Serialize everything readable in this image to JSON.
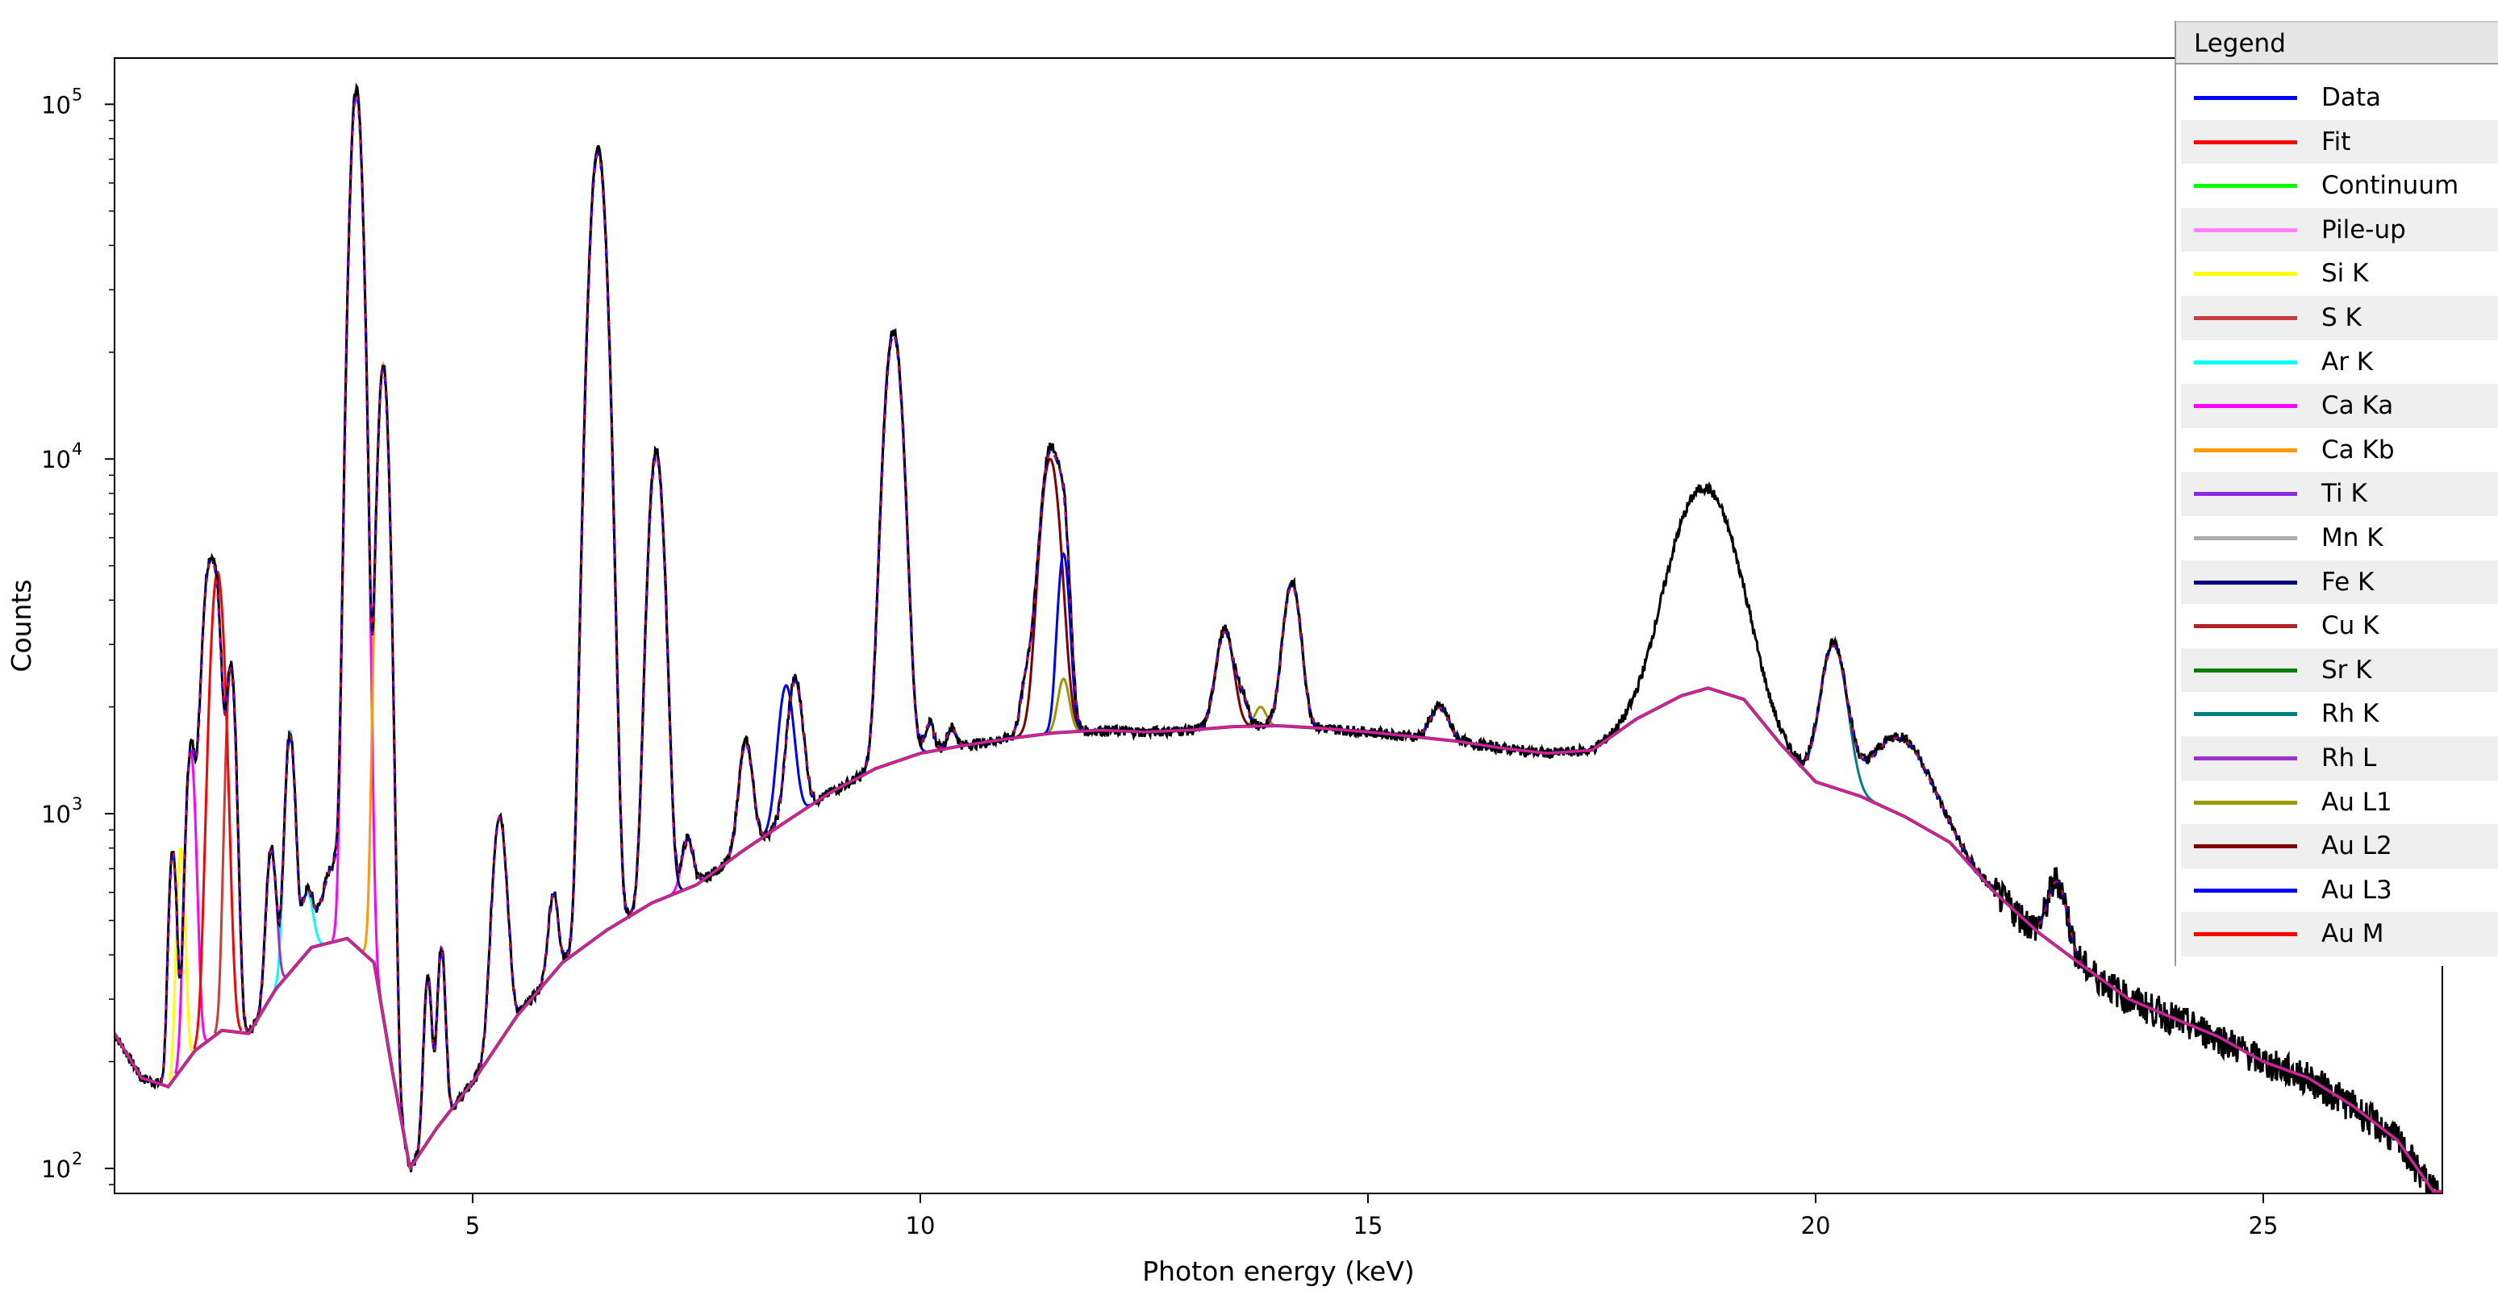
{
  "chart_data": {
    "type": "line",
    "title": "",
    "xlabel": "Photon energy (keV)",
    "ylabel": "Counts",
    "xlim": [
      1.0,
      27.0
    ],
    "ylim": [
      85,
      135000
    ],
    "yscale": "log",
    "x_ticks": [
      5,
      10,
      15,
      20,
      25
    ],
    "x_tick_labels": [
      "5",
      "10",
      "15",
      "20",
      "25"
    ],
    "y_ticks": [
      100,
      1000,
      10000,
      100000
    ],
    "y_tick_labels": [
      "10",
      "10",
      "10",
      "10"
    ],
    "y_tick_exponents": [
      "2",
      "3",
      "4",
      "5"
    ],
    "grid": false,
    "legend_placement": "right",
    "continuum_points": [
      [
        1.0,
        240
      ],
      [
        1.3,
        180
      ],
      [
        1.6,
        170
      ],
      [
        1.9,
        215
      ],
      [
        2.2,
        245
      ],
      [
        2.5,
        240
      ],
      [
        2.8,
        320
      ],
      [
        3.2,
        420
      ],
      [
        3.6,
        445
      ],
      [
        3.9,
        380
      ],
      [
        4.1,
        190
      ],
      [
        4.3,
        100
      ],
      [
        4.6,
        130
      ],
      [
        5.0,
        175
      ],
      [
        5.5,
        270
      ],
      [
        6.0,
        380
      ],
      [
        6.5,
        470
      ],
      [
        7.0,
        560
      ],
      [
        7.5,
        630
      ],
      [
        8.0,
        780
      ],
      [
        8.5,
        950
      ],
      [
        9.0,
        1150
      ],
      [
        9.5,
        1340
      ],
      [
        10.0,
        1480
      ],
      [
        10.5,
        1560
      ],
      [
        11.0,
        1630
      ],
      [
        11.5,
        1690
      ],
      [
        12.0,
        1720
      ],
      [
        12.5,
        1700
      ],
      [
        13.0,
        1720
      ],
      [
        13.5,
        1760
      ],
      [
        14.0,
        1770
      ],
      [
        14.5,
        1740
      ],
      [
        15.0,
        1700
      ],
      [
        15.5,
        1650
      ],
      [
        16.0,
        1600
      ],
      [
        16.5,
        1530
      ],
      [
        17.0,
        1480
      ],
      [
        17.5,
        1510
      ],
      [
        18.0,
        1850
      ],
      [
        18.5,
        2150
      ],
      [
        18.8,
        2260
      ],
      [
        19.2,
        2100
      ],
      [
        19.6,
        1580
      ],
      [
        20.0,
        1230
      ],
      [
        20.5,
        1120
      ],
      [
        21.0,
        980
      ],
      [
        21.5,
        830
      ],
      [
        22.0,
        600
      ],
      [
        22.5,
        460
      ],
      [
        23.0,
        370
      ],
      [
        23.5,
        300
      ],
      [
        24.0,
        265
      ],
      [
        24.5,
        235
      ],
      [
        25.0,
        200
      ],
      [
        25.5,
        180
      ],
      [
        26.0,
        150
      ],
      [
        26.5,
        120
      ],
      [
        26.9,
        86
      ]
    ],
    "data_peaks": [
      [
        1.65,
        800,
        0.04
      ],
      [
        1.85,
        1500,
        0.05
      ],
      [
        2.05,
        4800,
        0.07
      ],
      [
        2.15,
        2700,
        0.05
      ],
      [
        2.3,
        2600,
        0.05
      ],
      [
        2.75,
        800,
        0.05
      ],
      [
        2.96,
        1700,
        0.05
      ],
      [
        3.15,
        600,
        0.06
      ],
      [
        3.45,
        720,
        0.12
      ],
      [
        3.7,
        110000,
        0.06
      ],
      [
        4.0,
        18500,
        0.055
      ],
      [
        4.5,
        350,
        0.04
      ],
      [
        4.65,
        420,
        0.04
      ],
      [
        5.3,
        1000,
        0.07
      ],
      [
        5.9,
        600,
        0.05
      ],
      [
        6.4,
        75000,
        0.08
      ],
      [
        7.05,
        10500,
        0.075
      ],
      [
        7.4,
        850,
        0.06
      ],
      [
        8.05,
        1600,
        0.07
      ],
      [
        8.6,
        2400,
        0.08
      ],
      [
        9.7,
        23000,
        0.09
      ],
      [
        10.1,
        1800,
        0.05
      ],
      [
        10.35,
        1750,
        0.05
      ],
      [
        11.2,
        2400,
        0.07
      ],
      [
        11.45,
        10600,
        0.1
      ],
      [
        11.6,
        5400,
        0.06
      ],
      [
        13.4,
        3300,
        0.09
      ],
      [
        13.6,
        2100,
        0.06
      ],
      [
        14.15,
        4500,
        0.09
      ],
      [
        15.8,
        2000,
        0.1
      ],
      [
        18.75,
        8300,
        0.32
      ],
      [
        20.2,
        3000,
        0.13
      ],
      [
        20.95,
        1650,
        0.3
      ],
      [
        22.7,
        650,
        0.1
      ],
      [
        23.05,
        320,
        0.07
      ]
    ],
    "series": [
      {
        "name": "Data",
        "color": "#0000ff"
      },
      {
        "name": "Fit",
        "color": "#ff0000"
      },
      {
        "name": "Continuum",
        "color": "#00ff00"
      },
      {
        "name": "Pile-up",
        "color": "#ff80ff"
      },
      {
        "name": "Si K",
        "color": "#ffff00"
      },
      {
        "name": "S K",
        "color": "#cd3c3c"
      },
      {
        "name": "Ar K",
        "color": "#00ffff"
      },
      {
        "name": "Ca Ka",
        "color": "#ff00ff"
      },
      {
        "name": "Ca Kb",
        "color": "#ff9900"
      },
      {
        "name": "Ti K",
        "color": "#8a2be2"
      },
      {
        "name": "Mn K",
        "color": "#aaaaaa"
      },
      {
        "name": "Fe K",
        "color": "#000080"
      },
      {
        "name": "Cu K",
        "color": "#b22222"
      },
      {
        "name": "Sr K",
        "color": "#008000"
      },
      {
        "name": "Rh K",
        "color": "#008080"
      },
      {
        "name": "Rh L",
        "color": "#9932cc"
      },
      {
        "name": "Au L1",
        "color": "#999900"
      },
      {
        "name": "Au L2",
        "color": "#800000"
      },
      {
        "name": "Au L3",
        "color": "#0000ff"
      },
      {
        "name": "Au M",
        "color": "#ff0000"
      }
    ],
    "component_peaks": [
      {
        "series": "Si K",
        "peaks": [
          [
            1.74,
            800,
            0.04
          ]
        ]
      },
      {
        "series": "S K",
        "peaks": [
          [
            2.3,
            2600,
            0.05
          ]
        ]
      },
      {
        "series": "Ar K",
        "peaks": [
          [
            2.96,
            1700,
            0.05
          ],
          [
            3.15,
            600,
            0.06
          ]
        ]
      },
      {
        "series": "Ca Ka",
        "peaks": [
          [
            1.85,
            1500,
            0.05
          ],
          [
            3.7,
            110000,
            0.06
          ],
          [
            7.4,
            850,
            0.06
          ]
        ]
      },
      {
        "series": "Ca Kb",
        "peaks": [
          [
            4.0,
            18500,
            0.055
          ]
        ]
      },
      {
        "series": "Ti K",
        "peaks": [
          [
            4.5,
            350,
            0.04
          ],
          [
            4.65,
            420,
            0.04
          ]
        ]
      },
      {
        "series": "Fe K",
        "peaks": [
          [
            6.4,
            75000,
            0.08
          ],
          [
            7.05,
            10500,
            0.075
          ]
        ]
      },
      {
        "series": "Cu K",
        "peaks": [
          [
            8.05,
            1600,
            0.07
          ]
        ]
      },
      {
        "series": "Sr K",
        "peaks": [
          [
            14.15,
            4500,
            0.09
          ],
          [
            15.8,
            2000,
            0.1
          ]
        ]
      },
      {
        "series": "Rh K",
        "peaks": [
          [
            20.2,
            3000,
            0.13
          ],
          [
            22.7,
            650,
            0.1
          ]
        ]
      },
      {
        "series": "Rh L",
        "peaks": [
          [
            2.75,
            800,
            0.05
          ]
        ]
      },
      {
        "series": "Au L1",
        "peaks": [
          [
            11.6,
            2400,
            0.06
          ],
          [
            13.8,
            2000,
            0.06
          ]
        ]
      },
      {
        "series": "Au L2",
        "peaks": [
          [
            11.45,
            10000,
            0.1
          ],
          [
            13.4,
            3300,
            0.09
          ]
        ]
      },
      {
        "series": "Au L3",
        "peaks": [
          [
            9.7,
            23000,
            0.09
          ],
          [
            8.5,
            2300,
            0.08
          ],
          [
            11.6,
            5400,
            0.06
          ]
        ]
      },
      {
        "series": "Au M",
        "peaks": [
          [
            2.15,
            4800,
            0.07
          ]
        ]
      }
    ]
  },
  "legend": {
    "title": "Legend",
    "items": [
      "Data",
      "Fit",
      "Continuum",
      "Pile-up",
      "Si K",
      "S K",
      "Ar K",
      "Ca Ka",
      "Ca Kb",
      "Ti K",
      "Mn K",
      "Fe K",
      "Cu K",
      "Sr K",
      "Rh K",
      "Rh L",
      "Au L1",
      "Au L2",
      "Au L3",
      "Au M"
    ],
    "colors": [
      "#0000ff",
      "#ff0000",
      "#00ff00",
      "#ff80ff",
      "#ffff00",
      "#cd3c3c",
      "#00ffff",
      "#ff00ff",
      "#ff9900",
      "#8a2be2",
      "#aaaaaa",
      "#000080",
      "#b22222",
      "#008000",
      "#008080",
      "#9932cc",
      "#999900",
      "#800000",
      "#0000ff",
      "#ff0000"
    ]
  }
}
